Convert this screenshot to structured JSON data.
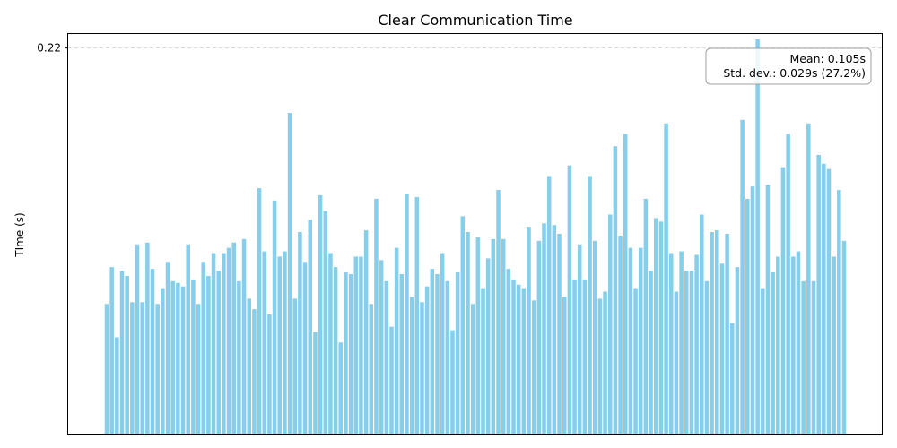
{
  "chart_data": {
    "type": "bar",
    "title": "Clear Communication Time",
    "xlabel": "",
    "ylabel": "TIme (s)",
    "ylim": [
      0,
      0.228
    ],
    "yticks": [
      0.22
    ],
    "ytick_labels": [
      "0.22"
    ],
    "grid": "y-dashed",
    "bar_color": "#87ceeb",
    "legend_position": "top-right",
    "annotation": {
      "line1": "Mean: 0.105s",
      "line2": "Std. dev.: 0.029s (27.2%)"
    },
    "values": [
      0.074,
      0.095,
      0.055,
      0.093,
      0.09,
      0.075,
      0.108,
      0.075,
      0.109,
      0.094,
      0.074,
      0.083,
      0.098,
      0.087,
      0.086,
      0.084,
      0.108,
      0.088,
      0.074,
      0.098,
      0.09,
      0.103,
      0.093,
      0.103,
      0.106,
      0.109,
      0.087,
      0.111,
      0.077,
      0.071,
      0.14,
      0.104,
      0.068,
      0.133,
      0.101,
      0.104,
      0.183,
      0.077,
      0.115,
      0.098,
      0.122,
      0.058,
      0.136,
      0.127,
      0.103,
      0.095,
      0.052,
      0.092,
      0.091,
      0.101,
      0.101,
      0.116,
      0.074,
      0.134,
      0.099,
      0.087,
      0.061,
      0.106,
      0.091,
      0.137,
      0.078,
      0.135,
      0.075,
      0.084,
      0.094,
      0.091,
      0.103,
      0.087,
      0.059,
      0.092,
      0.124,
      0.115,
      0.074,
      0.112,
      0.083,
      0.1,
      0.111,
      0.139,
      0.111,
      0.094,
      0.088,
      0.085,
      0.083,
      0.118,
      0.076,
      0.11,
      0.12,
      0.147,
      0.119,
      0.114,
      0.078,
      0.153,
      0.088,
      0.108,
      0.088,
      0.147,
      0.11,
      0.077,
      0.081,
      0.125,
      0.164,
      0.113,
      0.171,
      0.106,
      0.083,
      0.106,
      0.134,
      0.093,
      0.123,
      0.121,
      0.177,
      0.103,
      0.081,
      0.104,
      0.093,
      0.093,
      0.102,
      0.125,
      0.087,
      0.115,
      0.116,
      0.097,
      0.114,
      0.063,
      0.095,
      0.179,
      0.134,
      0.141,
      0.225,
      0.083,
      0.142,
      0.092,
      0.101,
      0.152,
      0.171,
      0.101,
      0.104,
      0.087,
      0.177,
      0.087,
      0.159,
      0.154,
      0.151,
      0.101,
      0.139,
      0.11
    ]
  }
}
